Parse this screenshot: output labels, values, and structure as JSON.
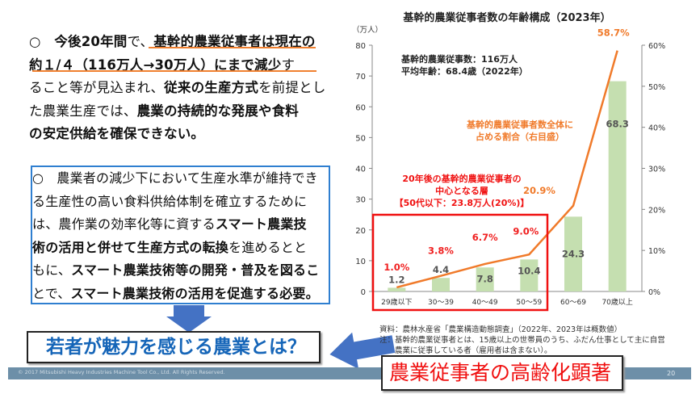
{
  "left_panel": {
    "paragraph1": [
      [
        {
          "t": "○　",
          "b": false
        },
        {
          "t": "今後20年間",
          "b": true
        },
        {
          "t": "で、",
          "b": false
        },
        {
          "t": "基幹的農業従事者は現在の",
          "b": true
        }
      ],
      [
        {
          "t": "約１/４（116万人→30万人）にまで減少",
          "b": true
        },
        {
          "t": "す",
          "b": false
        }
      ],
      [
        {
          "t": "ること等が見込まれ、",
          "b": false
        },
        {
          "t": "従来の生産方式",
          "b": true
        },
        {
          "t": "を前提とし",
          "b": false
        }
      ],
      [
        {
          "t": "た農業生産では、",
          "b": false
        },
        {
          "t": "農業の持続的な発展や食料",
          "b": true
        }
      ],
      [
        {
          "t": "の安定供給を確保できない。",
          "b": true
        }
      ]
    ],
    "paragraph2": [
      [
        {
          "t": "○　農業者の減少下において生産水準が維持でき",
          "b": false
        }
      ],
      [
        {
          "t": "る生産性の高い食料供給体制を確立するために",
          "b": false
        }
      ],
      [
        {
          "t": "は、農作業の効率化等に資する",
          "b": false
        },
        {
          "t": "スマート農業技",
          "b": true
        }
      ],
      [
        {
          "t": "術の活用と併せて生産方式の転換",
          "b": true
        },
        {
          "t": "を進めるとと",
          "b": false
        }
      ],
      [
        {
          "t": "もに、",
          "b": false
        },
        {
          "t": "スマート農業技術等の開発・普及を図るこ",
          "b": true
        }
      ],
      [
        {
          "t": "とで、",
          "b": false
        },
        {
          "t": "スマート農業技術の活用を促進する必要。",
          "b": true
        }
      ]
    ],
    "question": "若者が魅力を感じる農業とは？"
  },
  "callout": "農業従事者の高齢化顕著",
  "notes": [
    "資料：農林水産省「農業構造動態調査」（2022年、2023年は概数値）",
    "注：基幹的農業従事者とは、15歳以上の世帯員のうち、ふだん仕事として主に自営",
    "　　農業に従事している者（雇用者は含まない）。"
  ],
  "footer": {
    "copyright": "© 2017 Mitsubishi Heavy Industries Machine Tool Co., Ltd.  All Rights Reserved.",
    "page": "20"
  },
  "chart_data": {
    "type": "bar",
    "title": "基幹的農業従事者数の年齢構成（2023年）",
    "ylabel": "（万人）",
    "ylim": [
      0,
      80
    ],
    "yticks": [
      "0",
      "10",
      "20",
      "30",
      "40",
      "50",
      "60",
      "70",
      "80"
    ],
    "y2lim": [
      0,
      60
    ],
    "y2ticks": [
      "0%",
      "10%",
      "20%",
      "30%",
      "40%",
      "50%",
      "60%"
    ],
    "categories": [
      "29歳以下",
      "30～39",
      "40～49",
      "50～59",
      "60～69",
      "70歳以上"
    ],
    "series": [
      {
        "type": "bar",
        "values": [
          1.2,
          4.4,
          7.8,
          10.4,
          24.3,
          68.3
        ],
        "color": "#c5dfb0",
        "axis": "left"
      },
      {
        "type": "line",
        "name": "基幹的農業従事者数全体に占める割合（右目盛）",
        "values": [
          1.0,
          3.8,
          6.7,
          9.0,
          20.9,
          58.7
        ],
        "labels": [
          "1.0%",
          "3.8%",
          "6.7%",
          "9.0%",
          "20.9%",
          "58.7%"
        ],
        "color": "#f07a2a",
        "axis": "right"
      }
    ],
    "summary": [
      "基幹的農業従事数：116万人",
      "平均年齢：68.4歳（2022年）"
    ],
    "series_label": [
      "基幹的農業従事者数全体に",
      "占める割合（右目盛）"
    ],
    "highlight": {
      "lines": [
        "20年後の基幹的農業従事者の",
        "中心となる層",
        "【50代以下：23.8万人(20%)】"
      ],
      "color": "#f01010"
    },
    "grid": false
  }
}
